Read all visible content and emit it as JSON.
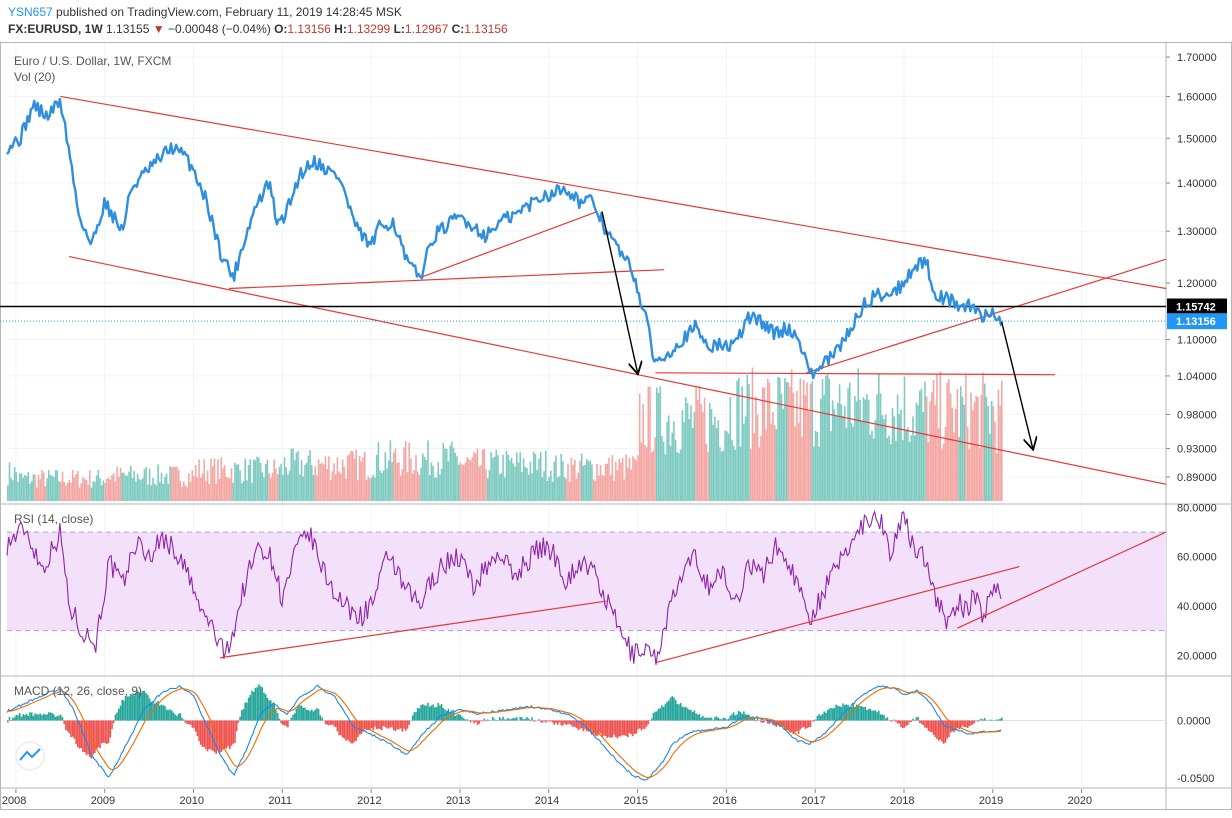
{
  "header": {
    "author": "YSN657",
    "published": "published on TradingView.com, February 11, 2019 14:28:45 MSK",
    "symbol": "FX:EURUSD, 1W",
    "last": "1.13155",
    "change_arrow": "▼",
    "change": "−0.00048 (−0.04%)",
    "o_label": "O:",
    "o_value": "1.13156",
    "h_label": "H:",
    "h_value": "1.13299",
    "l_label": "L:",
    "l_value": "1.12967",
    "c_label": "C:",
    "c_value": "1.13156"
  },
  "colors": {
    "price_line": "#2f8fdf",
    "trendline": "#e53935",
    "level_line": "#000000",
    "rsi_line": "#8e24aa",
    "rsi_band": "#f3e0fb",
    "macd_line": "#1e88e5",
    "signal_line": "#ef6c00",
    "hist_pos": "#26a69a",
    "hist_neg": "#ef5350",
    "vol_up": "#7fcbc2",
    "vol_down": "#f3a8a4",
    "current_price_label": "#2196f3",
    "level_label": "#000000"
  },
  "chart_data": [
    {
      "type": "line",
      "pane": "price",
      "title": "Euro / U.S. Dollar, 1W, FXCM",
      "subtitle": "Vol (20)",
      "x_axis_labels": [
        "2008",
        "2009",
        "2010",
        "2011",
        "2012",
        "2013",
        "2014",
        "2015",
        "2016",
        "2017",
        "2018",
        "2019",
        "2020"
      ],
      "y_ticks": [
        "1.70000",
        "1.60000",
        "1.50000",
        "1.40000",
        "1.30000",
        "1.20000",
        "1.10000",
        "1.04000",
        "0.98000",
        "0.93000",
        "0.89000"
      ],
      "y_tick_values": [
        1.7,
        1.6,
        1.5,
        1.4,
        1.3,
        1.2,
        1.1,
        1.04,
        0.98,
        0.93,
        0.89
      ],
      "scale": "log",
      "ylim": [
        0.855,
        1.74
      ],
      "xlim": [
        2007.9,
        2020.95
      ],
      "series": [
        {
          "kind": "price",
          "x": [
            2007.9,
            2008.05,
            2008.2,
            2008.35,
            2008.5,
            2008.6,
            2008.7,
            2008.85,
            2009.0,
            2009.2,
            2009.3,
            2009.45,
            2009.6,
            2009.75,
            2009.9,
            2010.0,
            2010.15,
            2010.3,
            2010.45,
            2010.55,
            2010.7,
            2010.85,
            2010.95,
            2011.05,
            2011.2,
            2011.35,
            2011.5,
            2011.65,
            2011.75,
            2011.85,
            2012.0,
            2012.1,
            2012.25,
            2012.4,
            2012.55,
            2012.7,
            2012.85,
            2013.0,
            2013.15,
            2013.3,
            2013.45,
            2013.6,
            2013.75,
            2013.9,
            2014.05,
            2014.2,
            2014.35,
            2014.5,
            2014.65,
            2014.8,
            2014.95,
            2015.1,
            2015.2,
            2015.35,
            2015.5,
            2015.65,
            2015.8,
            2015.95,
            2016.1,
            2016.25,
            2016.4,
            2016.55,
            2016.7,
            2016.85,
            2016.95,
            2017.1,
            2017.25,
            2017.4,
            2017.55,
            2017.7,
            2017.85,
            2018.0,
            2018.1,
            2018.25,
            2018.35,
            2018.5,
            2018.6,
            2018.7,
            2018.8,
            2018.9,
            2019.0,
            2019.1
          ],
          "y": [
            1.48,
            1.5,
            1.58,
            1.55,
            1.59,
            1.47,
            1.34,
            1.27,
            1.36,
            1.3,
            1.39,
            1.42,
            1.45,
            1.48,
            1.46,
            1.43,
            1.36,
            1.26,
            1.21,
            1.27,
            1.35,
            1.4,
            1.31,
            1.34,
            1.42,
            1.45,
            1.43,
            1.41,
            1.35,
            1.3,
            1.27,
            1.31,
            1.32,
            1.24,
            1.21,
            1.29,
            1.31,
            1.33,
            1.31,
            1.29,
            1.32,
            1.33,
            1.35,
            1.37,
            1.38,
            1.39,
            1.36,
            1.36,
            1.3,
            1.26,
            1.22,
            1.13,
            1.06,
            1.08,
            1.1,
            1.12,
            1.09,
            1.09,
            1.09,
            1.14,
            1.13,
            1.11,
            1.12,
            1.09,
            1.04,
            1.06,
            1.08,
            1.12,
            1.16,
            1.18,
            1.18,
            1.2,
            1.23,
            1.24,
            1.18,
            1.17,
            1.16,
            1.16,
            1.15,
            1.14,
            1.15,
            1.13156
          ]
        }
      ],
      "annotations": [
        {
          "label": "1.15742",
          "value": 1.15742,
          "kind": "horizontal-level"
        },
        {
          "label": "1.13156",
          "value": 1.13156,
          "kind": "current-price"
        }
      ],
      "trendlines": [
        {
          "x": [
            2008.5,
            2020.95
          ],
          "y": [
            1.6,
            1.19
          ]
        },
        {
          "x": [
            2008.6,
            2020.95
          ],
          "y": [
            1.25,
            0.88
          ]
        },
        {
          "x": [
            2010.4,
            2015.3
          ],
          "y": [
            1.19,
            1.225
          ]
        },
        {
          "x": [
            2012.55,
            2014.55
          ],
          "y": [
            1.21,
            1.34
          ]
        },
        {
          "x": [
            2015.2,
            2019.7
          ],
          "y": [
            1.045,
            1.042
          ]
        },
        {
          "x": [
            2016.9,
            2020.95
          ],
          "y": [
            1.045,
            1.245
          ]
        }
      ],
      "arrows": [
        {
          "x": [
            2014.6,
            2015.0
          ],
          "y": [
            1.34,
            1.045
          ]
        },
        {
          "x": [
            2019.1,
            2019.45
          ],
          "y": [
            1.13,
            0.93
          ]
        }
      ]
    },
    {
      "type": "bar",
      "pane": "volume",
      "description_label": "Vol (20)",
      "x_range": [
        2007.9,
        2019.1
      ],
      "values_by_year": {
        "2008": 16,
        "2009": 18,
        "2010": 22,
        "2011": 26,
        "2012": 30,
        "2013": 26,
        "2014": 24,
        "2015": 58,
        "2016": 66,
        "2017": 68,
        "2018": 64,
        "2019": 60
      },
      "scale_max": 100
    },
    {
      "type": "line",
      "pane": "rsi",
      "title": "RSI (14, close)",
      "y_ticks": [
        "80.0000",
        "60.0000",
        "40.0000",
        "20.0000"
      ],
      "y_tick_values": [
        80,
        60,
        40,
        20
      ],
      "ylim": [
        12,
        81
      ],
      "band": [
        30,
        70
      ],
      "series": [
        {
          "kind": "rsi",
          "x": [
            2007.9,
            2008.1,
            2008.3,
            2008.5,
            2008.6,
            2008.75,
            2008.9,
            2009.05,
            2009.2,
            2009.35,
            2009.5,
            2009.65,
            2009.8,
            2009.95,
            2010.05,
            2010.2,
            2010.35,
            2010.45,
            2010.6,
            2010.75,
            2010.9,
            2011.0,
            2011.15,
            2011.3,
            2011.45,
            2011.6,
            2011.75,
            2011.9,
            2012.05,
            2012.2,
            2012.35,
            2012.55,
            2012.7,
            2012.85,
            2013.0,
            2013.15,
            2013.3,
            2013.45,
            2013.6,
            2013.75,
            2013.9,
            2014.05,
            2014.2,
            2014.35,
            2014.5,
            2014.65,
            2014.8,
            2014.95,
            2015.1,
            2015.2,
            2015.35,
            2015.5,
            2015.65,
            2015.8,
            2015.95,
            2016.1,
            2016.25,
            2016.4,
            2016.55,
            2016.7,
            2016.85,
            2016.95,
            2017.1,
            2017.25,
            2017.4,
            2017.55,
            2017.7,
            2017.85,
            2018.0,
            2018.1,
            2018.25,
            2018.35,
            2018.5,
            2018.6,
            2018.7,
            2018.8,
            2018.9,
            2019.0,
            2019.1
          ],
          "y": [
            65,
            72,
            55,
            70,
            40,
            30,
            25,
            58,
            48,
            66,
            60,
            68,
            62,
            52,
            40,
            32,
            20,
            30,
            52,
            65,
            58,
            42,
            62,
            70,
            55,
            45,
            38,
            36,
            44,
            62,
            48,
            40,
            52,
            58,
            60,
            48,
            56,
            62,
            52,
            58,
            64,
            62,
            50,
            58,
            54,
            42,
            30,
            20,
            24,
            18,
            38,
            52,
            60,
            48,
            54,
            40,
            58,
            52,
            64,
            58,
            44,
            36,
            46,
            56,
            66,
            74,
            78,
            62,
            76,
            64,
            60,
            44,
            32,
            42,
            38,
            44,
            36,
            48,
            45
          ]
        }
      ],
      "trendlines": [
        {
          "x": [
            2010.3,
            2014.65
          ],
          "y": [
            19,
            42
          ]
        },
        {
          "x": [
            2015.2,
            2019.3
          ],
          "y": [
            17,
            56
          ]
        },
        {
          "x": [
            2018.6,
            2020.95
          ],
          "y": [
            31,
            70
          ]
        }
      ]
    },
    {
      "type": "line",
      "pane": "macd",
      "title": "MACD (12, 26, close, 9)",
      "y_ticks": [
        "0.0000",
        "-0.0500"
      ],
      "y_tick_values": [
        0,
        -0.05
      ],
      "ylim": [
        -0.058,
        0.038
      ],
      "series": [
        {
          "kind": "macd",
          "x": [
            2007.9,
            2008.1,
            2008.3,
            2008.5,
            2008.65,
            2008.85,
            2009.05,
            2009.25,
            2009.45,
            2009.65,
            2009.85,
            2010.0,
            2010.15,
            2010.3,
            2010.45,
            2010.6,
            2010.75,
            2010.9,
            2011.05,
            2011.2,
            2011.4,
            2011.6,
            2011.8,
            2012.0,
            2012.2,
            2012.4,
            2012.6,
            2012.8,
            2013.0,
            2013.2,
            2013.4,
            2013.6,
            2013.8,
            2014.0,
            2014.2,
            2014.4,
            2014.6,
            2014.8,
            2014.95,
            2015.1,
            2015.25,
            2015.4,
            2015.6,
            2015.8,
            2016.0,
            2016.2,
            2016.4,
            2016.6,
            2016.8,
            2016.95,
            2017.1,
            2017.3,
            2017.5,
            2017.7,
            2017.9,
            2018.0,
            2018.15,
            2018.3,
            2018.45,
            2018.6,
            2018.75,
            2018.9,
            2019.1
          ],
          "y": [
            0.008,
            0.015,
            0.022,
            0.028,
            0.01,
            -0.03,
            -0.05,
            -0.02,
            0.01,
            0.025,
            0.03,
            0.022,
            -0.005,
            -0.03,
            -0.048,
            -0.025,
            0.005,
            0.015,
            0.005,
            0.02,
            0.03,
            0.02,
            -0.005,
            -0.012,
            -0.02,
            -0.03,
            -0.01,
            0.005,
            0.01,
            0.006,
            0.008,
            0.01,
            0.012,
            0.01,
            0.006,
            -0.004,
            -0.02,
            -0.038,
            -0.048,
            -0.052,
            -0.04,
            -0.02,
            -0.01,
            -0.008,
            -0.006,
            0.004,
            0.002,
            -0.004,
            -0.018,
            -0.02,
            -0.012,
            0.005,
            0.02,
            0.03,
            0.028,
            0.022,
            0.026,
            0.015,
            -0.004,
            -0.008,
            -0.012,
            -0.01,
            -0.008
          ]
        }
      ]
    }
  ]
}
